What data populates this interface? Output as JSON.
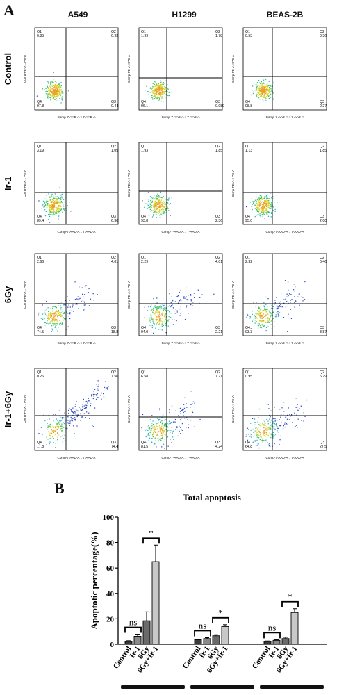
{
  "panel_a": {
    "letter": "A",
    "columns": [
      "A549",
      "H1299",
      "BEAS-2B"
    ],
    "rows": [
      "Control",
      "Ir-1",
      "6Gy",
      "Ir-1+6Gy"
    ],
    "x_axis_label": "Comp-7-AAD-A :: 7-AAD-A",
    "y_axis_label": "Comp-PE-A :: PE-A",
    "quadrant_labels": [
      "Q1",
      "Q2",
      "Q3",
      "Q4"
    ],
    "plots": [
      [
        {
          "Q1": "0.85",
          "Q2": "0.93",
          "Q3": "0.44",
          "Q4": "97.8"
        },
        {
          "Q1": "1.99",
          "Q2": "1.78",
          "Q3": "0.089",
          "Q4": "96.1"
        },
        {
          "Q1": "0.53",
          "Q2": "0.36",
          "Q3": "0.27",
          "Q4": "98.8"
        }
      ],
      [
        {
          "Q1": "3.19",
          "Q2": "1.09",
          "Q3": "6.30",
          "Q4": "89.4"
        },
        {
          "Q1": "1.93",
          "Q2": "1.85",
          "Q3": "2.36",
          "Q4": "93.8"
        },
        {
          "Q1": "1.13",
          "Q2": "1.85",
          "Q3": "2.00",
          "Q4": "95.0"
        }
      ],
      [
        {
          "Q1": "2.66",
          "Q2": "4.01",
          "Q3": "18.8",
          "Q4": "74.5"
        },
        {
          "Q1": "2.29",
          "Q2": "4.01",
          "Q3": "2.21",
          "Q4": "94.0"
        },
        {
          "Q1": "2.32",
          "Q2": "0.46",
          "Q3": "3.87",
          "Q4": "93.3"
        }
      ],
      [
        {
          "Q1": "0.26",
          "Q2": "7.56",
          "Q3": "74.4",
          "Q4": "17.8"
        },
        {
          "Q1": "6.58",
          "Q2": "7.71",
          "Q3": "4.24",
          "Q4": "81.5"
        },
        {
          "Q1": "0.95",
          "Q2": "6.79",
          "Q3": "27.5",
          "Q4": "64.8"
        }
      ]
    ]
  },
  "panel_b": {
    "letter": "B"
  },
  "chart_data": {
    "type": "bar",
    "title": "Total apoptosis",
    "ylabel": "Apoptotic percentage(%)",
    "ylim": [
      0,
      100
    ],
    "yticks": [
      0,
      20,
      40,
      60,
      80,
      100
    ],
    "categories": [
      "Control",
      "Ir-1",
      "6Gy",
      "6Gy+Ir-1"
    ],
    "groups": [
      {
        "name": "A549",
        "values": [
          2.2,
          6.3,
          18.5,
          65
        ],
        "errors": [
          0.6,
          1.6,
          7,
          13
        ]
      },
      {
        "name": "H1299",
        "values": [
          3.6,
          4.5,
          6.7,
          14
        ],
        "errors": [
          0.5,
          0.7,
          0.8,
          1.4
        ]
      },
      {
        "name": "BEAS-2B",
        "values": [
          2.2,
          3.1,
          4.5,
          25
        ],
        "errors": [
          0.4,
          0.5,
          1.0,
          3
        ]
      }
    ],
    "bar_colors": [
      "#3a3a3a",
      "#8a8a8a",
      "#6a6a6a",
      "#c8c8c8"
    ],
    "significance": [
      {
        "group": 0,
        "from": 0,
        "to": 1,
        "label": "ns"
      },
      {
        "group": 0,
        "from": 2,
        "to": 3,
        "label": "*"
      },
      {
        "group": 1,
        "from": 0,
        "to": 1,
        "label": "ns"
      },
      {
        "group": 1,
        "from": 2,
        "to": 3,
        "label": "*"
      },
      {
        "group": 2,
        "from": 0,
        "to": 1,
        "label": "ns"
      },
      {
        "group": 2,
        "from": 2,
        "to": 3,
        "label": "*"
      }
    ]
  }
}
